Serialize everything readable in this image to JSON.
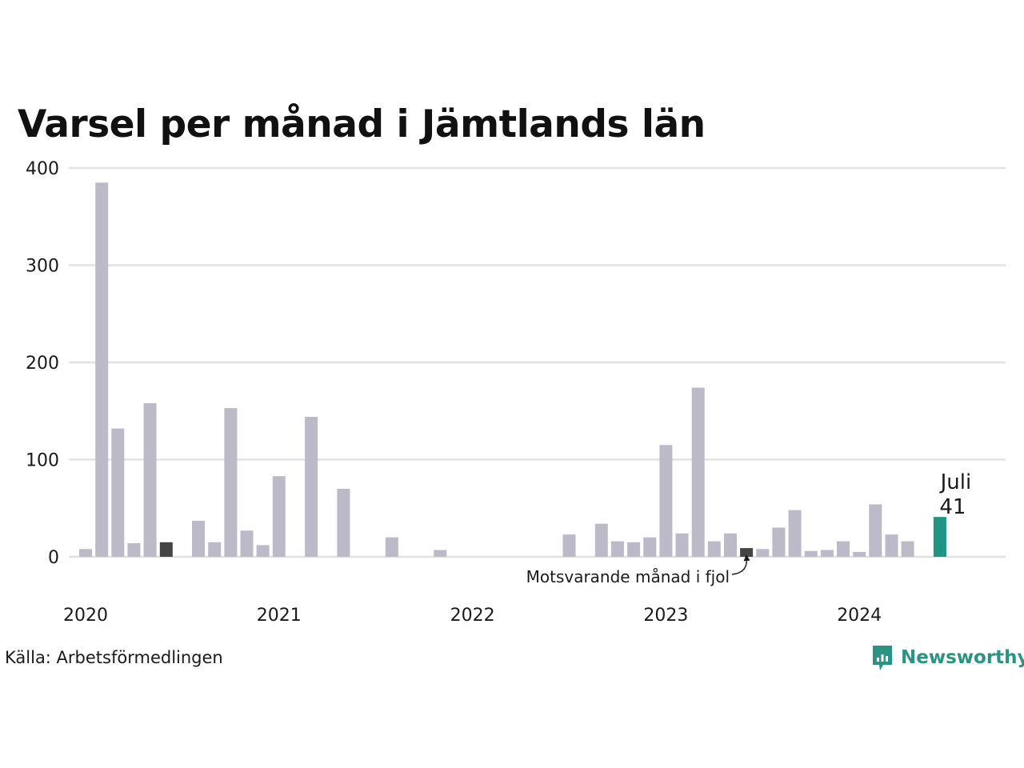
{
  "title": "Varsel per månad i Jämtlands län",
  "source": "Källa: Arbetsförmedlingen",
  "brand": "Newsworthy",
  "colors": {
    "default_bar": "#bcbac8",
    "previous_year_bar": "#444444",
    "current_bar": "#1f9585",
    "grid": "#e2e2e2",
    "brand": "#2a9484"
  },
  "chart_data": {
    "type": "bar",
    "title": "Varsel per månad i Jämtlands län",
    "ylim": [
      0,
      400
    ],
    "yticks": [
      "0",
      "100",
      "200",
      "300",
      "400"
    ],
    "year_labels": [
      "2020",
      "2021",
      "2022",
      "2023",
      "2024"
    ],
    "grid": true,
    "first_month": "2020-01",
    "values": [
      8,
      385,
      132,
      14,
      158,
      15,
      0,
      37,
      15,
      153,
      27,
      12,
      83,
      0,
      144,
      0,
      70,
      0,
      0,
      20,
      0,
      0,
      7,
      0,
      0,
      0,
      0,
      0,
      0,
      0,
      23,
      0,
      34,
      16,
      15,
      20,
      115,
      24,
      174,
      16,
      24,
      9,
      8,
      30,
      48,
      6,
      7,
      16,
      5,
      54,
      23,
      16,
      0,
      41
    ],
    "highlight": {
      "previous_year": [
        5,
        41
      ],
      "current": 53
    },
    "current_label": {
      "month": "Juli",
      "value": "41"
    },
    "annotation": "Motsvarande månad i fjol"
  }
}
